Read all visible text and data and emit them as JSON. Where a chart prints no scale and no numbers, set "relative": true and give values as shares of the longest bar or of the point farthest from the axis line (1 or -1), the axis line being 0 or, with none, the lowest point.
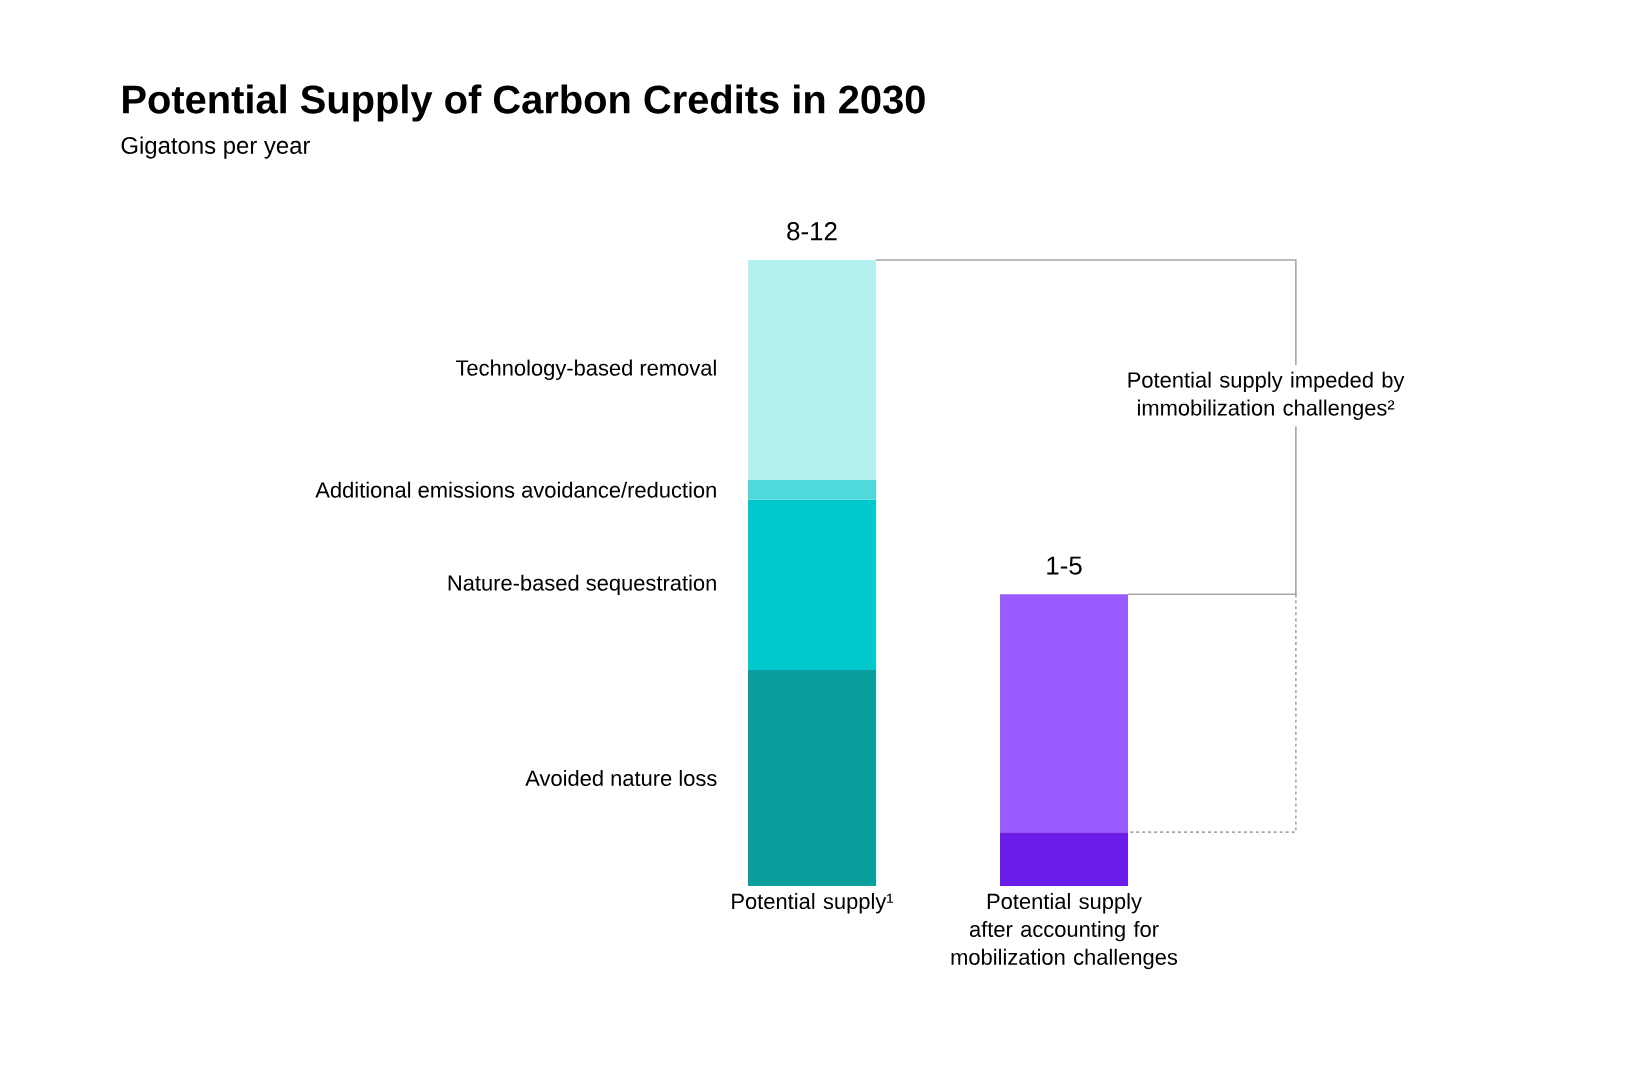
{
  "chart_data": {
    "type": "bar",
    "stacked": true,
    "relative": true,
    "title": "Potential Supply of Carbon Credits in 2030",
    "subtitle": "Gigatons per year",
    "categories": [
      "Potential supply¹",
      "Potential supply after accounting for mobilization challenges"
    ],
    "series": [
      {
        "name": "Avoided nature loss",
        "color": "#0a9e9e",
        "values": [
          0.345,
          null
        ]
      },
      {
        "name": "Nature-based sequestration",
        "color": "#00c8cc",
        "values": [
          0.272,
          null
        ]
      },
      {
        "name": "Additional emissions avoidance/reduction",
        "color": "#4fd9dd",
        "values": [
          0.032,
          null
        ]
      },
      {
        "name": "Technology-based removal",
        "color": "#b3f0f0",
        "values": [
          0.351,
          null
        ]
      },
      {
        "color": "#6a1de8",
        "values": [
          null,
          0.086
        ]
      },
      {
        "color": "#9a5cff",
        "values": [
          null,
          0.38
        ]
      }
    ],
    "totals": [
      "8-12",
      "1-5"
    ],
    "annotations": [
      "Potential supply impeded by immobilization challenges²"
    ]
  }
}
